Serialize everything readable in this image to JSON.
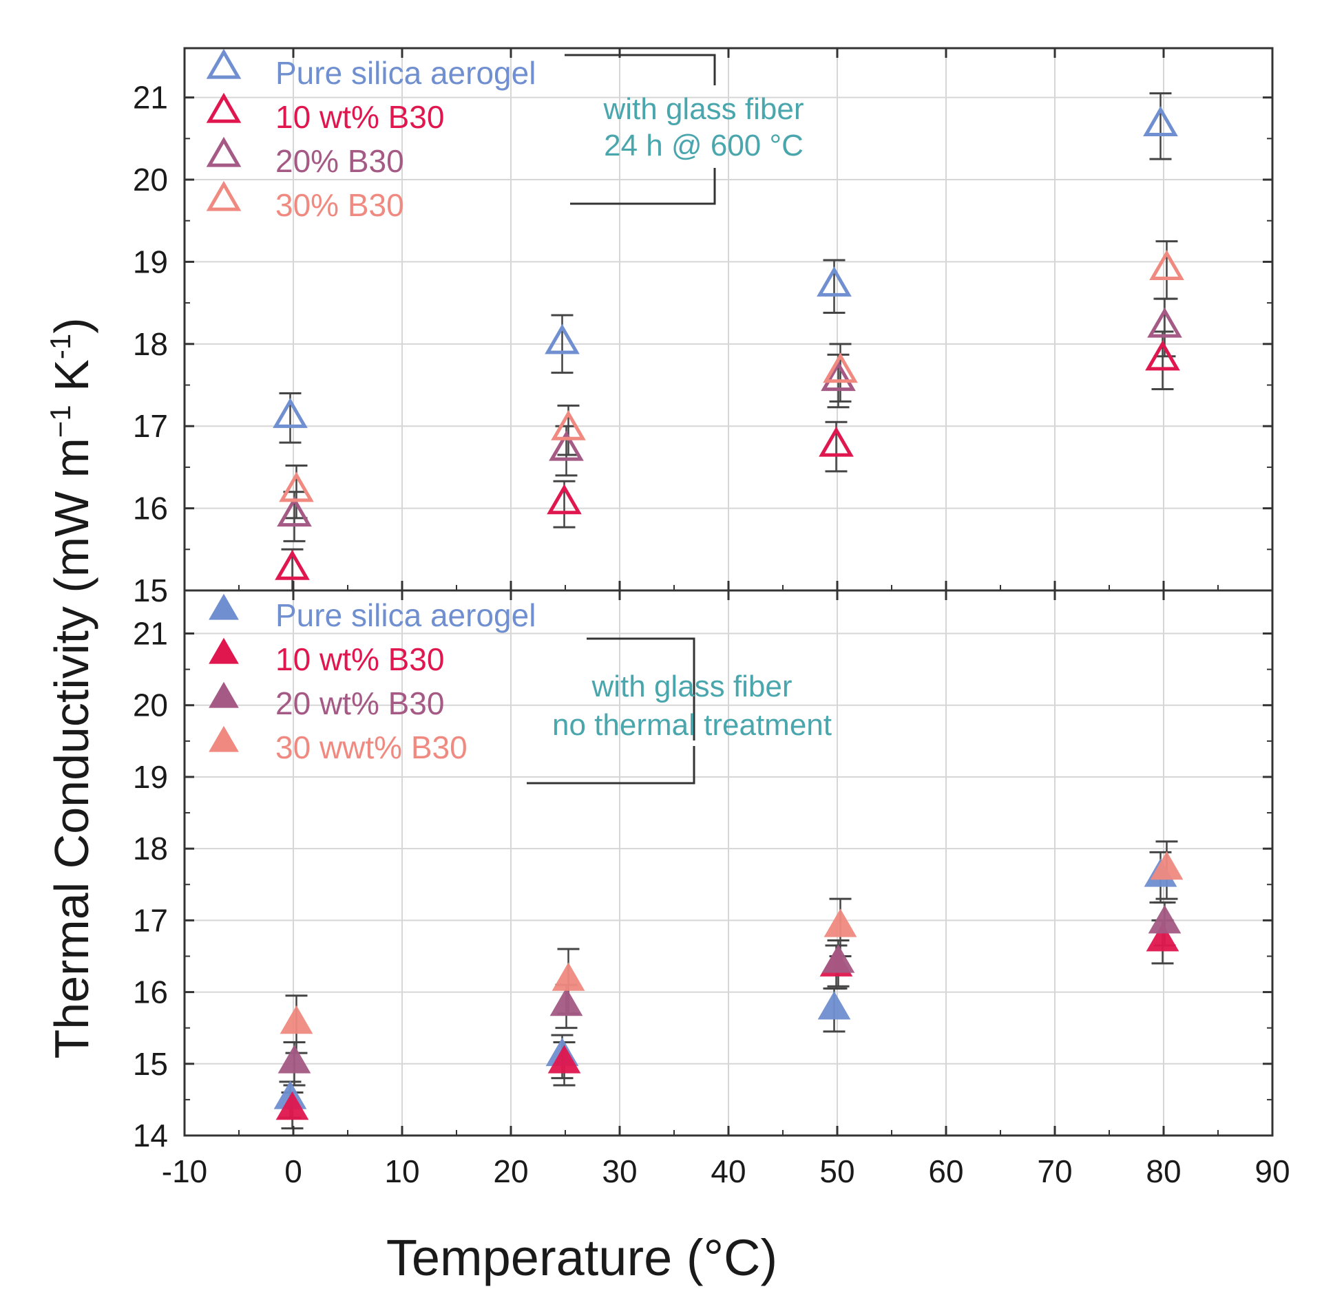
{
  "chart_data": {
    "type": "scatter",
    "xlabel": "Temperature (°C)",
    "ylabel": "Thermal Conductivity (mW m",
    "ylabel_parts": [
      "Thermal Conductivity (mW m",
      "−1",
      " K",
      "-1",
      ")"
    ],
    "xlim": [
      -10,
      90
    ],
    "xticks": [
      -10,
      0,
      10,
      20,
      30,
      40,
      50,
      60,
      70,
      80,
      90
    ],
    "grid": true,
    "panels": [
      {
        "id": "top",
        "marker": "hollow-triangle",
        "ylim": [
          15,
          21.6
        ],
        "yticks": [
          15,
          16,
          17,
          18,
          19,
          20,
          21
        ],
        "annotation": [
          "with glass fiber",
          "24 h @ 600 °C"
        ],
        "series": [
          {
            "name": "Pure silica aerogel",
            "color": "#6f8fd0",
            "x": [
              0,
              25,
              50,
              80
            ],
            "y": [
              17.1,
              18.0,
              18.7,
              20.65
            ],
            "err": [
              0.3,
              0.35,
              0.32,
              0.4
            ]
          },
          {
            "name": "10 wt% B30",
            "color": "#e0174f",
            "x": [
              0,
              25,
              50,
              80
            ],
            "y": [
              15.25,
              16.05,
              16.75,
              17.8
            ],
            "err": [
              0.25,
              0.28,
              0.3,
              0.35
            ]
          },
          {
            "name": "20%  B30",
            "color": "#a45a84",
            "x": [
              0,
              25,
              50,
              80
            ],
            "y": [
              15.9,
              16.7,
              17.55,
              18.2
            ],
            "err": [
              0.3,
              0.3,
              0.32,
              0.35
            ]
          },
          {
            "name": "30%  B30",
            "color": "#f08a80",
            "x": [
              0,
              25,
              50,
              80
            ],
            "y": [
              16.2,
              16.95,
              17.65,
              18.9
            ],
            "err": [
              0.32,
              0.3,
              0.35,
              0.35
            ]
          }
        ]
      },
      {
        "id": "bottom",
        "marker": "filled-triangle",
        "ylim": [
          14,
          21.6
        ],
        "yticks": [
          14,
          15,
          16,
          17,
          18,
          19,
          20,
          21
        ],
        "annotation": [
          "with glass fiber",
          "no thermal treatment"
        ],
        "series": [
          {
            "name": "Pure silica aerogel",
            "color": "#6f8fd0",
            "x": [
              0,
              25,
              50,
              80
            ],
            "y": [
              14.5,
              15.1,
              15.75,
              17.6
            ],
            "err": [
              0.25,
              0.3,
              0.3,
              0.35
            ]
          },
          {
            "name": "10 wt% B30",
            "color": "#e0174f",
            "x": [
              0,
              25,
              50,
              80
            ],
            "y": [
              14.35,
              15.0,
              16.35,
              16.7
            ],
            "err": [
              0.25,
              0.3,
              0.3,
              0.3
            ]
          },
          {
            "name": "20 wt%  B30",
            "color": "#a45a84",
            "x": [
              0,
              25,
              50,
              80
            ],
            "y": [
              15.0,
              15.8,
              16.4,
              16.95
            ],
            "err": [
              0.3,
              0.3,
              0.32,
              0.3
            ]
          },
          {
            "name": "30 wwt% B30",
            "color": "#f08a80",
            "x": [
              0,
              25,
              50,
              80
            ],
            "y": [
              15.55,
              16.15,
              16.9,
              17.7
            ],
            "err": [
              0.4,
              0.45,
              0.4,
              0.4
            ]
          }
        ]
      }
    ]
  }
}
